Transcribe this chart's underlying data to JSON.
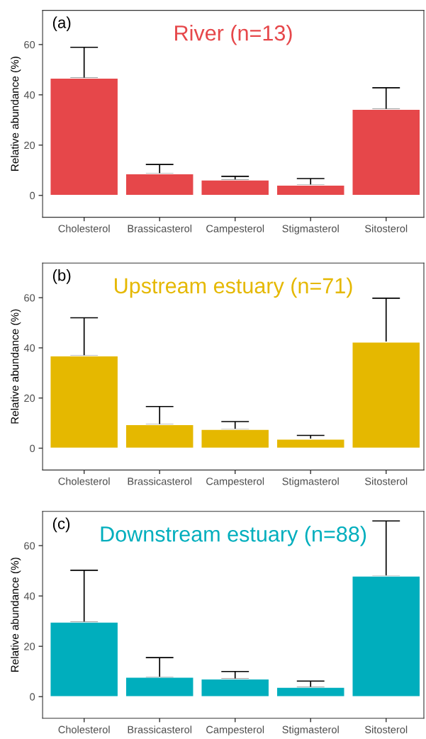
{
  "chart_data": [
    {
      "type": "bar",
      "title": "River (n=13)",
      "ylabel": "Relative abundance (%)",
      "annotations": [
        "(a)"
      ],
      "categories": [
        "Cholesterol",
        "Brassicasterol",
        "Campesterol",
        "Stigmasterol",
        "Sitosterol"
      ],
      "series": [
        {
          "color": "#e6474a",
          "values": [
            46.6,
            8.6,
            6.1,
            4.1,
            34.2
          ],
          "errors": [
            [
              46.6,
              58.9
            ],
            [
              8.6,
              12.3
            ],
            [
              6.1,
              7.6
            ],
            [
              4.1,
              6.7
            ],
            [
              34.2,
              42.8
            ]
          ]
        }
      ],
      "ylim": [
        -8.7,
        73.6
      ],
      "yticks": [
        0,
        20,
        40,
        60
      ],
      "grid": false,
      "legend": false
    },
    {
      "type": "bar",
      "title": "Upstream estuary (n=71)",
      "ylabel": "Relative abundance (%)",
      "annotations": [
        "(b)"
      ],
      "categories": [
        "Cholesterol",
        "Brassicasterol",
        "Campesterol",
        "Stigmasterol",
        "Sitosterol"
      ],
      "series": [
        {
          "color": "#e5b800",
          "values": [
            36.8,
            9.4,
            7.5,
            3.6,
            42.3
          ],
          "errors": [
            [
              36.8,
              52.0
            ],
            [
              9.4,
              16.6
            ],
            [
              7.5,
              10.6
            ],
            [
              3.6,
              5.1
            ],
            [
              42.3,
              59.8
            ]
          ]
        }
      ],
      "ylim": [
        -8.7,
        73.8
      ],
      "yticks": [
        0,
        20,
        40,
        60
      ],
      "grid": false,
      "legend": false
    },
    {
      "type": "bar",
      "title": "Downstream estuary (n=88)",
      "ylabel": "Relative abundance (%)",
      "annotations": [
        "(c)"
      ],
      "categories": [
        "Cholesterol",
        "Brassicasterol",
        "Campesterol",
        "Stigmasterol",
        "Sitosterol"
      ],
      "series": [
        {
          "color": "#00aebd",
          "values": [
            29.6,
            7.7,
            7.0,
            3.7,
            47.9
          ],
          "errors": [
            [
              29.6,
              50.2
            ],
            [
              7.7,
              15.5
            ],
            [
              7.0,
              10.0
            ],
            [
              3.7,
              6.2
            ],
            [
              47.9,
              69.8
            ]
          ]
        }
      ],
      "ylim": [
        -8.6,
        73.6
      ],
      "yticks": [
        0,
        20,
        40,
        60
      ],
      "grid": false,
      "legend": false
    }
  ]
}
